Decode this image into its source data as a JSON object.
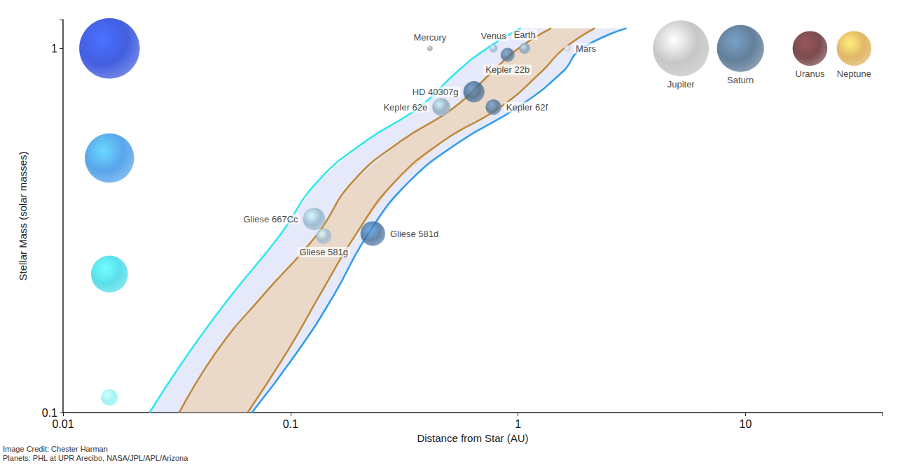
{
  "chart_data": {
    "type": "scatter",
    "x_label": "Distance from Star (AU)",
    "y_label": "Stellar Mass (solar masses)",
    "log": true,
    "grid": false,
    "xlim": [
      0.01,
      40
    ],
    "xticks": [
      0.01,
      0.1,
      1,
      10
    ],
    "ylim": [
      0.1,
      1.2
    ],
    "yticks": [
      0.1,
      1
    ],
    "series": [
      {
        "type": "scatter",
        "marker": "circle",
        "x": [
          0.016,
          0.016,
          0.016,
          0.016
        ],
        "values": [
          1.0,
          0.5,
          0.24,
          0.11
        ],
        "sizes": [
          5.4,
          4.4,
          3.3,
          1.5
        ],
        "colors": [
          "#1436d8",
          "#2f8fe6",
          "#33d6e6",
          "#88f0f0"
        ]
      },
      {
        "type": "line",
        "color": "#2ee6ee",
        "line_style": "solid",
        "x": [
          0.024,
          0.0366,
          0.0553,
          0.0899,
          0.1302,
          0.2145,
          0.366,
          0.542,
          0.721,
          1.029
        ],
        "values": [
          0.1,
          0.149,
          0.211,
          0.307,
          0.428,
          0.557,
          0.688,
          0.865,
          0.995,
          1.136
        ]
      },
      {
        "type": "line",
        "color": "#c08838",
        "line_style": "solid",
        "x": [
          0.0324,
          0.048,
          0.0763,
          0.1302,
          0.186,
          0.306,
          0.523,
          0.774,
          0.993,
          1.398
        ],
        "values": [
          0.1,
          0.149,
          0.211,
          0.307,
          0.428,
          0.557,
          0.688,
          0.865,
          0.995,
          1.136
        ]
      },
      {
        "type": "line",
        "color": "#c08838",
        "line_style": "solid",
        "x": [
          0.0648,
          0.0979,
          0.1349,
          0.1927,
          0.285,
          0.4696,
          0.831,
          1.274,
          1.578,
          2.175
        ],
        "values": [
          0.1,
          0.149,
          0.211,
          0.307,
          0.428,
          0.557,
          0.688,
          0.865,
          0.995,
          1.136
        ]
      },
      {
        "type": "line",
        "color": "#2f9be8",
        "line_style": "solid",
        "x": [
          0.0676,
          0.109,
          0.1556,
          0.2176,
          0.3289,
          0.5613,
          0.993,
          1.578,
          1.886,
          2.999
        ],
        "values": [
          0.1,
          0.149,
          0.211,
          0.307,
          0.428,
          0.557,
          0.688,
          0.865,
          0.995,
          1.136
        ]
      },
      {
        "type": "scatter",
        "marker": "circle",
        "labels": [
          "Mercury",
          "Venus",
          "Earth",
          "Mars",
          "Kepler 22b",
          "HD 40307g",
          "Kepler 62e",
          "Kepler 62f",
          "Gliese 667Cc",
          "Gliese 581g",
          "Gliese 581d",
          "Jupiter",
          "Saturn",
          "Uranus",
          "Neptune"
        ],
        "x": [
          0.41,
          0.78,
          1.07,
          1.65,
          0.9,
          0.64,
          0.46,
          0.78,
          0.127,
          0.14,
          0.23,
          5.2,
          9.5,
          19.2,
          30
        ],
        "values": [
          1.0,
          1.0,
          1.0,
          1.0,
          0.96,
          0.76,
          0.69,
          0.69,
          0.34,
          0.305,
          0.31,
          1.0,
          1.0,
          1.0,
          1.0
        ],
        "sizes": [
          0.5,
          0.75,
          1.0,
          0.6,
          1.25,
          1.9,
          1.6,
          1.4,
          2.0,
          1.4,
          2.2,
          5.0,
          4.2,
          3.1,
          3.1
        ],
        "colors": [
          "#9a9a9a",
          "#8fb3cc",
          "#7f9fb8",
          "#c9d3da",
          "#4f6f8c",
          "#3f6488",
          "#8aa5b8",
          "#4d6f90",
          "#8fb0c8",
          "#9ab6c9",
          "#3d6a98",
          "#b8b8b8",
          "#3c5f80",
          "#5a1f22",
          "#d9a441"
        ]
      }
    ],
    "annotations": [
      "Image Credit: Chester Harman",
      "Planets: PHL at UPR Arecibo, NASA/JPL/APL/Arizona"
    ]
  }
}
